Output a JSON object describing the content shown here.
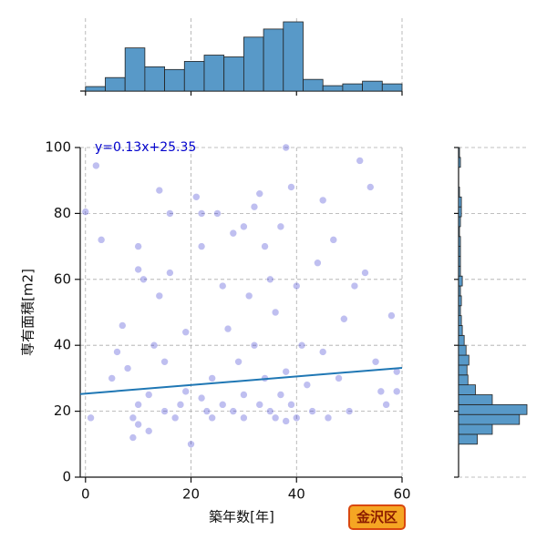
{
  "chart_data": [
    {
      "type": "scatter",
      "xlabel": "築年数[年]",
      "ylabel": "専有面積[m2]",
      "xlim": [
        -1,
        60
      ],
      "ylim": [
        0,
        100
      ],
      "xticks": [
        0,
        20,
        40,
        60
      ],
      "yticks": [
        0,
        20,
        40,
        60,
        80,
        100
      ],
      "grid": true,
      "color": "#2a2acc",
      "x": [
        2,
        0,
        3,
        1,
        5,
        6,
        7,
        8,
        9,
        9,
        10,
        10,
        10,
        10,
        11,
        12,
        12,
        13,
        14,
        14,
        15,
        15,
        16,
        16,
        17,
        18,
        19,
        19,
        20,
        21,
        22,
        22,
        22,
        23,
        24,
        24,
        25,
        26,
        26,
        27,
        28,
        28,
        29,
        30,
        30,
        30,
        31,
        32,
        32,
        33,
        33,
        34,
        34,
        35,
        35,
        36,
        36,
        37,
        37,
        38,
        38,
        38,
        39,
        39,
        40,
        40,
        41,
        42,
        43,
        44,
        45,
        45,
        46,
        47,
        48,
        49,
        50,
        51,
        52,
        53,
        54,
        55,
        56,
        57,
        58,
        59,
        59
      ],
      "y": [
        94.5,
        80.5,
        72,
        18,
        30,
        38,
        46,
        33,
        12,
        18,
        22,
        16,
        70,
        63,
        60,
        14,
        25,
        40,
        87,
        55,
        20,
        35,
        80,
        62,
        18,
        22,
        26,
        44,
        10,
        85,
        80,
        70,
        24,
        20,
        30,
        18,
        80,
        58,
        22,
        45,
        74,
        20,
        35,
        76,
        25,
        18,
        55,
        82,
        40,
        22,
        86,
        70,
        30,
        20,
        60,
        18,
        50,
        25,
        76,
        100,
        17,
        32,
        88,
        22,
        58,
        18,
        40,
        28,
        20,
        65,
        38,
        84,
        18,
        72,
        30,
        48,
        20,
        58,
        96,
        62,
        88,
        35,
        26,
        22,
        49,
        32,
        26
      ],
      "fit": {
        "label": "y=0.13x+25.35",
        "slope": 0.13,
        "intercept": 25.35,
        "color": "#1f77b4"
      },
      "badge": "金沢区"
    },
    {
      "type": "histogram",
      "orientation": "vertical",
      "color": "#5899c8",
      "bins": [
        0,
        3.75,
        7.5,
        11.25,
        15,
        18.75,
        22.5,
        26.25,
        30,
        33.75,
        37.5,
        41.25,
        45,
        48.75,
        52.5,
        56.25,
        60
      ],
      "counts": [
        5,
        15,
        48,
        27,
        24,
        33,
        40,
        38,
        60,
        69,
        77,
        13,
        6,
        8,
        11,
        8
      ]
    },
    {
      "type": "histogram",
      "orientation": "horizontal",
      "color": "#5899c8",
      "bins": [
        10,
        13,
        16,
        19,
        22,
        25,
        28,
        31,
        34,
        37,
        40,
        43,
        46,
        49,
        52,
        55,
        58,
        61,
        64,
        67,
        70,
        73,
        76,
        79,
        82,
        85,
        88,
        91,
        94,
        97,
        100
      ],
      "counts": [
        20,
        36,
        65,
        73,
        36,
        18,
        10,
        9,
        11,
        8,
        6,
        4,
        3,
        2,
        3,
        2,
        4,
        2,
        2,
        2,
        2,
        1,
        2,
        3,
        3,
        1,
        0,
        0,
        2,
        1
      ]
    }
  ]
}
